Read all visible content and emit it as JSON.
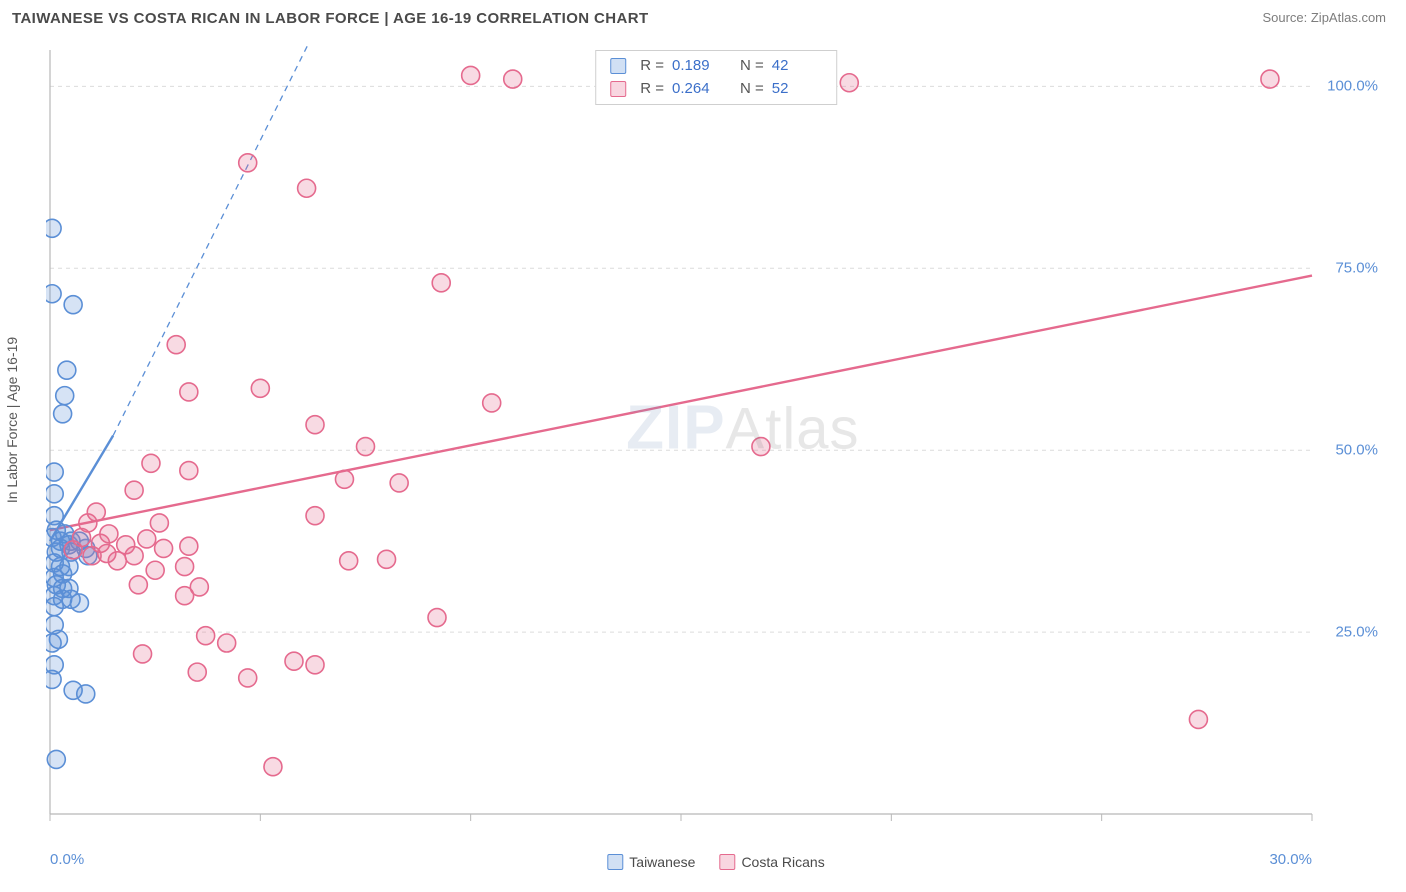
{
  "header": {
    "title": "TAIWANESE VS COSTA RICAN IN LABOR FORCE | AGE 16-19 CORRELATION CHART",
    "source_label": "Source: ZipAtlas.com"
  },
  "watermark": {
    "zip": "ZIP",
    "atlas": "Atlas"
  },
  "chart": {
    "type": "scatter",
    "ylabel": "In Labor Force | Age 16-19",
    "background_color": "#ffffff",
    "grid_color": "#dcdcdc",
    "axis_line_color": "#b8b8b8",
    "tick_color": "#5b8fd6",
    "xlim": [
      0,
      30
    ],
    "ylim": [
      0,
      105
    ],
    "x_ticks": [
      0,
      5,
      10,
      15,
      20,
      25,
      30
    ],
    "x_tick_labels": [
      "0.0%",
      "",
      "",
      "",
      "",
      "",
      "30.0%"
    ],
    "y_gridlines": [
      25,
      50,
      75,
      100
    ],
    "y_tick_labels": [
      "25.0%",
      "50.0%",
      "75.0%",
      "100.0%"
    ],
    "marker_radius": 9,
    "marker_stroke_width": 1.6,
    "marker_fill_opacity": 0.25,
    "series": [
      {
        "name": "Taiwanese",
        "color": "#5b8fd6",
        "fill": "rgba(91,143,214,0.25)",
        "r_value": "0.189",
        "n_value": "42",
        "trend_line": {
          "x1": 0,
          "y1": 37.5,
          "x2": 1.5,
          "y2": 52,
          "dashed_extend_to_x": 6.5,
          "dashed_extend_to_y": 110
        },
        "points": [
          [
            0.05,
            80.5
          ],
          [
            0.05,
            71.5
          ],
          [
            0.55,
            70
          ],
          [
            0.4,
            61
          ],
          [
            0.35,
            57.5
          ],
          [
            0.3,
            55
          ],
          [
            0.1,
            47
          ],
          [
            0.1,
            44
          ],
          [
            0.1,
            41
          ],
          [
            0.15,
            39
          ],
          [
            0.05,
            38
          ],
          [
            0.35,
            38.5
          ],
          [
            0.5,
            37.5
          ],
          [
            0.7,
            37.5
          ],
          [
            0.25,
            36.5
          ],
          [
            0.15,
            36
          ],
          [
            0.5,
            36
          ],
          [
            0.85,
            36.5
          ],
          [
            0.9,
            35.5
          ],
          [
            0.1,
            34.5
          ],
          [
            0.25,
            34
          ],
          [
            0.45,
            34
          ],
          [
            0.3,
            33
          ],
          [
            0.1,
            32.5
          ],
          [
            0.15,
            31.5
          ],
          [
            0.3,
            31
          ],
          [
            0.45,
            31
          ],
          [
            0.1,
            30
          ],
          [
            0.3,
            29.5
          ],
          [
            0.5,
            29.5
          ],
          [
            0.1,
            28.5
          ],
          [
            0.7,
            29
          ],
          [
            0.1,
            26
          ],
          [
            0.2,
            24
          ],
          [
            0.05,
            23.5
          ],
          [
            0.1,
            20.5
          ],
          [
            0.05,
            18.5
          ],
          [
            0.55,
            17
          ],
          [
            0.85,
            16.5
          ],
          [
            0.15,
            7.5
          ],
          [
            0.45,
            37
          ],
          [
            0.25,
            37.5
          ]
        ]
      },
      {
        "name": "Costa Ricans",
        "color": "#e56a8e",
        "fill": "rgba(229,106,142,0.25)",
        "r_value": "0.264",
        "n_value": "52",
        "trend_line": {
          "x1": 0,
          "y1": 39,
          "x2": 30,
          "y2": 74
        },
        "points": [
          [
            10.0,
            101.5
          ],
          [
            11.0,
            101.0
          ],
          [
            19.0,
            100.5
          ],
          [
            29.0,
            101.0
          ],
          [
            4.7,
            89.5
          ],
          [
            6.1,
            86.0
          ],
          [
            9.3,
            73.0
          ],
          [
            10.5,
            56.5
          ],
          [
            3.0,
            64.5
          ],
          [
            3.3,
            58.0
          ],
          [
            5.0,
            58.5
          ],
          [
            6.3,
            53.5
          ],
          [
            7.5,
            50.5
          ],
          [
            16.9,
            50.5
          ],
          [
            2.4,
            48.2
          ],
          [
            3.3,
            47.2
          ],
          [
            2.0,
            44.5
          ],
          [
            7.0,
            46.0
          ],
          [
            8.3,
            45.5
          ],
          [
            6.3,
            41.0
          ],
          [
            1.1,
            41.5
          ],
          [
            1.4,
            38.5
          ],
          [
            2.6,
            40.0
          ],
          [
            7.1,
            34.8
          ],
          [
            8.0,
            35.0
          ],
          [
            0.75,
            38.0
          ],
          [
            1.2,
            37.2
          ],
          [
            1.8,
            37.0
          ],
          [
            2.3,
            37.8
          ],
          [
            2.7,
            36.5
          ],
          [
            3.3,
            36.8
          ],
          [
            0.55,
            36.3
          ],
          [
            1.0,
            35.5
          ],
          [
            1.35,
            35.8
          ],
          [
            2.0,
            35.5
          ],
          [
            1.6,
            34.8
          ],
          [
            2.5,
            33.5
          ],
          [
            3.2,
            34.0
          ],
          [
            2.1,
            31.5
          ],
          [
            3.2,
            30.0
          ],
          [
            3.55,
            31.2
          ],
          [
            9.2,
            27.0
          ],
          [
            3.7,
            24.5
          ],
          [
            4.2,
            23.5
          ],
          [
            2.2,
            22.0
          ],
          [
            4.7,
            18.7
          ],
          [
            3.5,
            19.5
          ],
          [
            5.8,
            21.0
          ],
          [
            6.3,
            20.5
          ],
          [
            5.3,
            6.5
          ],
          [
            27.3,
            13.0
          ],
          [
            0.9,
            40.0
          ]
        ]
      }
    ],
    "bottom_legend": [
      {
        "label": "Taiwanese",
        "swatch_fill": "rgba(91,143,214,0.28)",
        "swatch_border": "#5b8fd6"
      },
      {
        "label": "Costa Ricans",
        "swatch_fill": "rgba(229,106,142,0.28)",
        "swatch_border": "#e56a8e"
      }
    ]
  }
}
